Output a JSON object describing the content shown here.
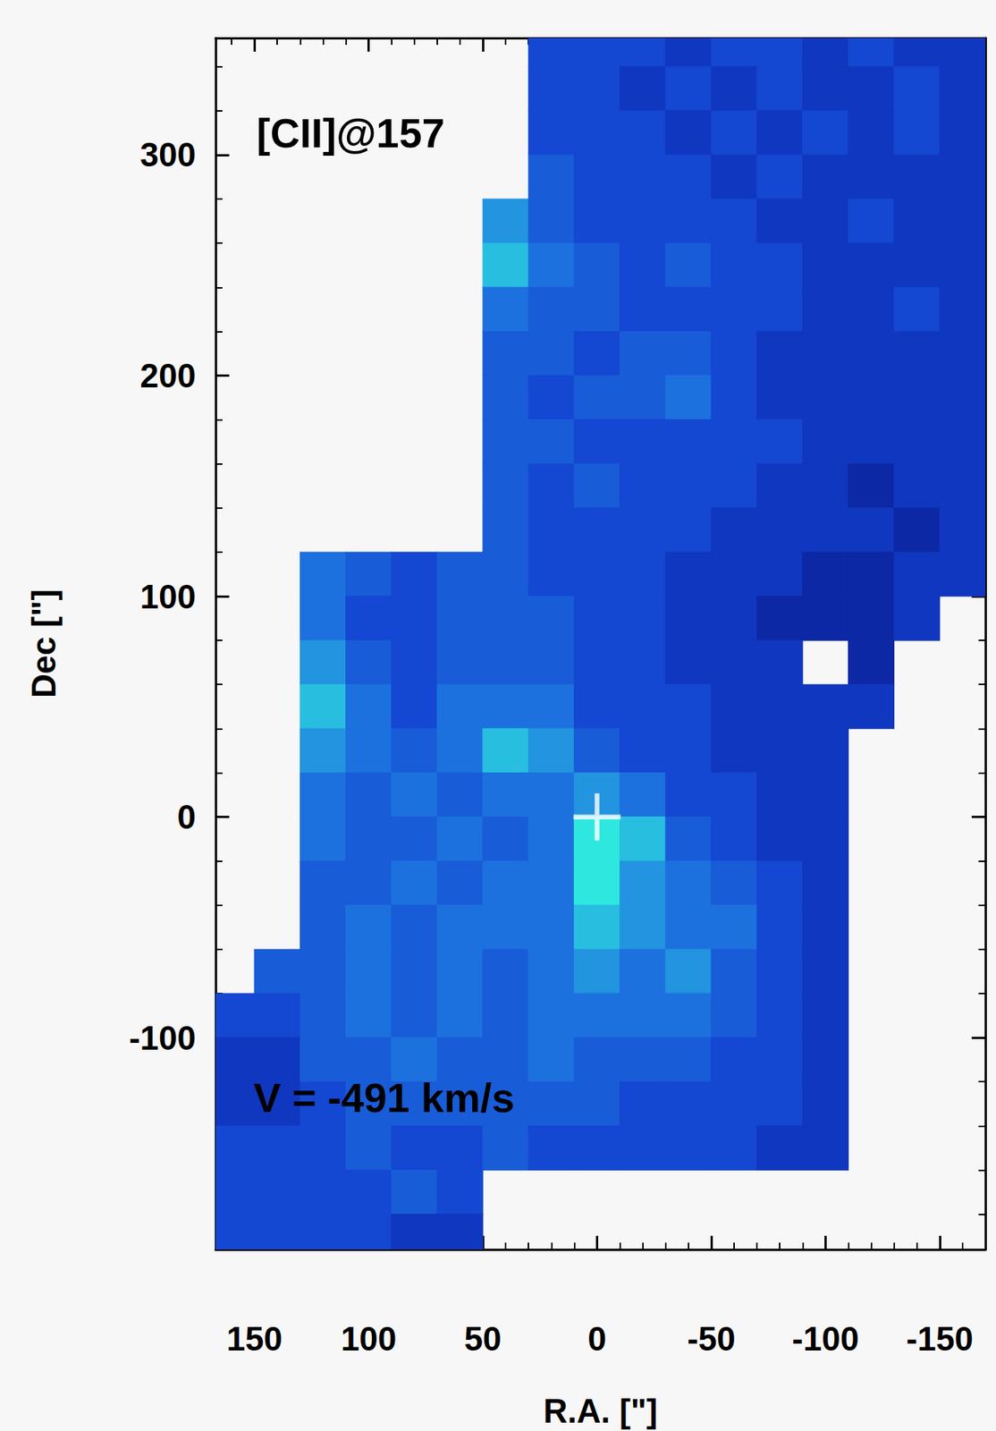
{
  "chart_data": {
    "type": "heatmap",
    "annotations": [
      "[CII]@157",
      "V = -491 km/s"
    ],
    "x_label": "R.A. [\"]",
    "y_label": "Dec [\"]",
    "xlim": [
      167,
      -170
    ],
    "ylim": [
      -196,
      353
    ],
    "xticks": [
      150,
      100,
      50,
      0,
      -50,
      -100,
      -150
    ],
    "yticks": [
      -100,
      0,
      100,
      200,
      300
    ],
    "grid": false,
    "reference_position": [
      0,
      0
    ],
    "color_range": [
      0,
      8
    ],
    "colorscale": [
      "#081a8a",
      "#1240d0",
      "#1e78e0",
      "#2ee8e0"
    ],
    "ra": [
      160,
      140,
      120,
      100,
      80,
      60,
      40,
      20,
      0,
      -20,
      -40,
      -60,
      -80,
      -100,
      -120,
      -140,
      -160
    ],
    "dec": [
      350,
      330,
      310,
      290,
      270,
      250,
      230,
      210,
      190,
      170,
      150,
      130,
      110,
      90,
      70,
      50,
      30,
      10,
      -10,
      -30,
      -50,
      -70,
      -90,
      -110,
      -130,
      -150,
      -170,
      -190
    ],
    "intensity": [
      [
        null,
        null,
        null,
        null,
        null,
        null,
        null,
        3,
        3,
        3,
        2,
        3,
        3,
        2,
        3,
        2,
        2
      ],
      [
        null,
        null,
        null,
        null,
        null,
        null,
        null,
        3,
        3,
        2,
        3,
        2,
        3,
        2,
        2,
        3,
        2
      ],
      [
        null,
        null,
        null,
        null,
        null,
        null,
        null,
        3,
        3,
        3,
        2,
        3,
        2,
        3,
        2,
        3,
        2
      ],
      [
        null,
        null,
        null,
        null,
        null,
        null,
        null,
        4,
        3,
        3,
        3,
        2,
        3,
        2,
        2,
        2,
        2
      ],
      [
        null,
        null,
        null,
        null,
        null,
        null,
        6,
        4,
        3,
        3,
        3,
        3,
        2,
        2,
        3,
        2,
        2
      ],
      [
        null,
        null,
        null,
        null,
        null,
        null,
        7,
        5,
        4,
        3,
        4,
        3,
        3,
        2,
        2,
        2,
        2
      ],
      [
        null,
        null,
        null,
        null,
        null,
        null,
        5,
        4,
        4,
        3,
        3,
        3,
        3,
        2,
        2,
        3,
        2
      ],
      [
        null,
        null,
        null,
        null,
        null,
        null,
        4,
        4,
        3,
        4,
        4,
        3,
        2,
        2,
        2,
        2,
        2
      ],
      [
        null,
        null,
        null,
        null,
        null,
        null,
        4,
        3,
        4,
        4,
        5,
        3,
        2,
        2,
        2,
        2,
        2
      ],
      [
        null,
        null,
        null,
        null,
        null,
        null,
        4,
        4,
        3,
        3,
        3,
        3,
        3,
        2,
        2,
        2,
        2
      ],
      [
        null,
        null,
        null,
        null,
        null,
        null,
        4,
        3,
        4,
        3,
        3,
        3,
        2,
        2,
        1,
        2,
        2
      ],
      [
        null,
        null,
        null,
        null,
        null,
        null,
        4,
        3,
        3,
        3,
        3,
        2,
        2,
        2,
        2,
        1,
        2
      ],
      [
        null,
        null,
        5,
        4,
        3,
        4,
        4,
        3,
        3,
        3,
        2,
        2,
        2,
        1,
        1,
        2,
        2
      ],
      [
        null,
        null,
        5,
        3,
        3,
        4,
        4,
        4,
        3,
        3,
        2,
        2,
        1,
        1,
        1,
        2,
        null
      ],
      [
        null,
        null,
        6,
        4,
        3,
        4,
        4,
        4,
        3,
        3,
        2,
        2,
        2,
        null,
        1,
        null,
        null
      ],
      [
        null,
        null,
        7,
        5,
        3,
        5,
        5,
        5,
        3,
        3,
        3,
        2,
        2,
        2,
        2,
        null,
        null
      ],
      [
        null,
        null,
        6,
        5,
        4,
        5,
        7,
        6,
        4,
        3,
        3,
        2,
        2,
        2,
        null,
        null,
        null
      ],
      [
        null,
        null,
        5,
        4,
        5,
        4,
        5,
        5,
        6,
        5,
        3,
        3,
        2,
        2,
        null,
        null,
        null
      ],
      [
        null,
        null,
        5,
        4,
        4,
        5,
        4,
        5,
        8,
        7,
        4,
        3,
        2,
        2,
        null,
        null,
        null
      ],
      [
        null,
        null,
        4,
        4,
        5,
        4,
        5,
        5,
        8,
        6,
        5,
        4,
        3,
        2,
        null,
        null,
        null
      ],
      [
        null,
        null,
        4,
        5,
        4,
        5,
        5,
        5,
        7,
        6,
        5,
        5,
        3,
        2,
        null,
        null,
        null
      ],
      [
        null,
        4,
        4,
        5,
        4,
        5,
        4,
        5,
        6,
        5,
        6,
        4,
        3,
        2,
        null,
        null,
        null
      ],
      [
        3,
        3,
        4,
        5,
        4,
        5,
        4,
        5,
        5,
        5,
        5,
        4,
        3,
        2,
        null,
        null,
        null
      ],
      [
        2,
        2,
        4,
        4,
        5,
        4,
        4,
        5,
        4,
        4,
        4,
        3,
        3,
        2,
        null,
        null,
        null
      ],
      [
        2,
        2,
        3,
        4,
        4,
        4,
        4,
        4,
        4,
        3,
        3,
        3,
        3,
        2,
        null,
        null,
        null
      ],
      [
        3,
        3,
        3,
        4,
        3,
        3,
        4,
        3,
        3,
        3,
        3,
        3,
        2,
        2,
        null,
        null,
        null
      ],
      [
        3,
        3,
        3,
        3,
        4,
        3,
        null,
        null,
        null,
        null,
        null,
        null,
        null,
        null,
        null,
        null,
        null
      ],
      [
        3,
        3,
        3,
        3,
        2,
        2,
        null,
        null,
        null,
        null,
        null,
        null,
        null,
        null,
        null,
        null,
        null
      ]
    ]
  }
}
